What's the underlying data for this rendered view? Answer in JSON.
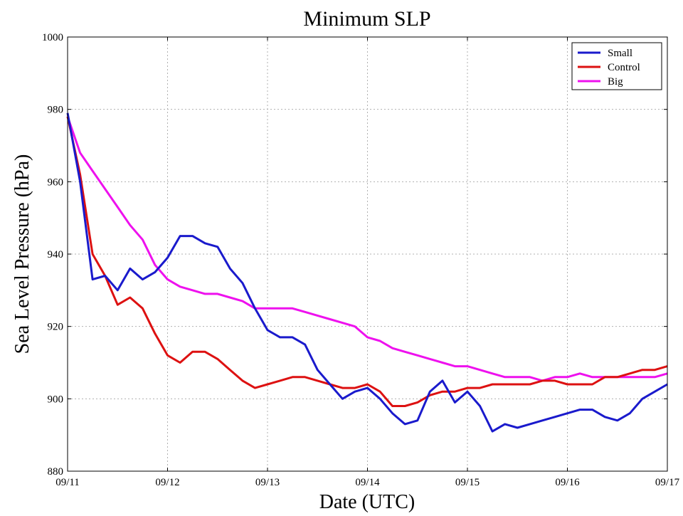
{
  "chart_data": {
    "type": "line",
    "title": "Minimum SLP",
    "xlabel": "Date (UTC)",
    "ylabel": "Sea Level Pressure (hPa)",
    "x_ticks": [
      "09/11",
      "09/12",
      "09/13",
      "09/14",
      "09/15",
      "09/16",
      "09/17"
    ],
    "xlim": [
      "09/11",
      "09/17"
    ],
    "ylim": [
      880,
      1000
    ],
    "y_ticks": [
      880,
      900,
      920,
      940,
      960,
      980,
      1000
    ],
    "grid": true,
    "legend_position": "top-right",
    "x": [
      "09/11 00:00",
      "09/11 03:00",
      "09/11 06:00",
      "09/11 09:00",
      "09/11 12:00",
      "09/11 15:00",
      "09/11 18:00",
      "09/11 21:00",
      "09/12 00:00",
      "09/12 03:00",
      "09/12 06:00",
      "09/12 09:00",
      "09/12 12:00",
      "09/12 15:00",
      "09/12 18:00",
      "09/12 21:00",
      "09/13 00:00",
      "09/13 03:00",
      "09/13 06:00",
      "09/13 09:00",
      "09/13 12:00",
      "09/13 15:00",
      "09/13 18:00",
      "09/13 21:00",
      "09/14 00:00",
      "09/14 03:00",
      "09/14 06:00",
      "09/14 09:00",
      "09/14 12:00",
      "09/14 15:00",
      "09/14 18:00",
      "09/14 21:00",
      "09/15 00:00",
      "09/15 03:00",
      "09/15 06:00",
      "09/15 09:00",
      "09/15 12:00",
      "09/15 15:00",
      "09/15 18:00",
      "09/15 21:00",
      "09/16 00:00",
      "09/16 03:00",
      "09/16 06:00",
      "09/16 09:00",
      "09/16 12:00",
      "09/16 15:00",
      "09/16 18:00",
      "09/16 21:00",
      "09/17 00:00"
    ],
    "series": [
      {
        "name": "Small",
        "color": "#1a1acc",
        "values": [
          979,
          960,
          933,
          934,
          930,
          936,
          933,
          935,
          939,
          945,
          945,
          943,
          942,
          936,
          932,
          925,
          919,
          917,
          917,
          915,
          908,
          904,
          900,
          902,
          903,
          900,
          896,
          893,
          894,
          902,
          905,
          899,
          902,
          898,
          891,
          893,
          892,
          893,
          894,
          895,
          896,
          897,
          897,
          895,
          894,
          896,
          900,
          902,
          904
        ]
      },
      {
        "name": "Control",
        "color": "#dd1111",
        "values": [
          978,
          962,
          940,
          934,
          926,
          928,
          925,
          918,
          912,
          910,
          913,
          913,
          911,
          908,
          905,
          903,
          904,
          905,
          906,
          906,
          905,
          904,
          903,
          903,
          904,
          902,
          898,
          898,
          899,
          901,
          902,
          902,
          903,
          903,
          904,
          904,
          904,
          904,
          905,
          905,
          904,
          904,
          904,
          906,
          906,
          907,
          908,
          908,
          909
        ]
      },
      {
        "name": "Big",
        "color": "#ee11ee",
        "values": [
          978,
          968,
          963,
          958,
          953,
          948,
          944,
          937,
          933,
          931,
          930,
          929,
          929,
          928,
          927,
          925,
          925,
          925,
          925,
          924,
          923,
          922,
          921,
          920,
          917,
          916,
          914,
          913,
          912,
          911,
          910,
          909,
          909,
          908,
          907,
          906,
          906,
          906,
          905,
          906,
          906,
          907,
          906,
          906,
          906,
          906,
          906,
          906,
          907
        ]
      }
    ]
  }
}
